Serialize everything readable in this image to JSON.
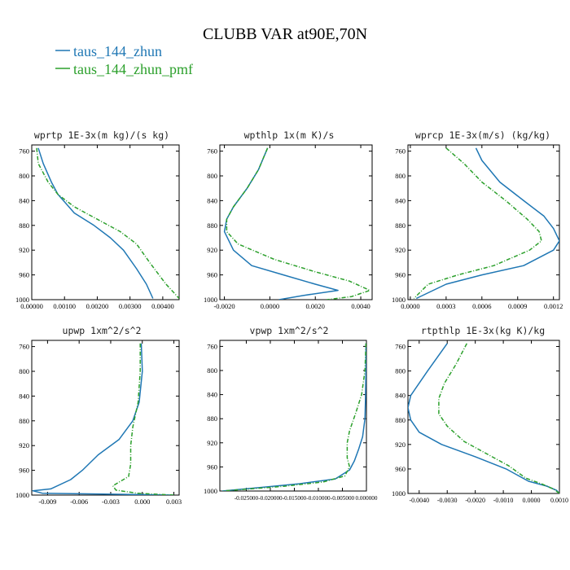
{
  "figure": {
    "title": "CLUBB VAR at90E,70N",
    "legend": [
      {
        "label": "taus_144_zhun",
        "color": "#1f77b4",
        "dash": "solid"
      },
      {
        "label": "taus_144_zhun_pmf",
        "color": "#2ca02c",
        "dash": "dashed"
      }
    ]
  },
  "chart_data": [
    {
      "type": "line",
      "title": "wprtp  1E-3x(m kg)/(s kg)",
      "xlim": [
        0.0,
        0.0045
      ],
      "ylim": [
        1000,
        750
      ],
      "yticks": [
        760,
        800,
        840,
        880,
        920,
        960,
        1000
      ],
      "xtick_labels": [
        "0.00000",
        "0.00100",
        "0.00200",
        "0.00300",
        "0.00400"
      ],
      "xtick_values": [
        0.0,
        0.001,
        0.002,
        0.003,
        0.004
      ],
      "series": [
        {
          "name": "taus_144_zhun",
          "color": "#1f77b4",
          "dash": "solid",
          "x": [
            0.0002,
            0.00035,
            0.0006,
            0.0008,
            0.0013,
            0.0019,
            0.0024,
            0.0028,
            0.0032,
            0.0035,
            0.0037
          ],
          "y": [
            755,
            780,
            810,
            830,
            860,
            880,
            900,
            920,
            950,
            975,
            998
          ]
        },
        {
          "name": "taus_144_zhun_pmf",
          "color": "#2ca02c",
          "dash": "dashed",
          "x": [
            0.00015,
            0.0002,
            0.0005,
            0.0008,
            0.0013,
            0.002,
            0.0027,
            0.0032,
            0.0036,
            0.0041,
            0.0045
          ],
          "y": [
            755,
            780,
            810,
            830,
            850,
            870,
            890,
            910,
            940,
            975,
            998
          ]
        }
      ]
    },
    {
      "type": "line",
      "title": "wpthlp  1x(m K)/s",
      "xlim": [
        -0.0022,
        0.0045
      ],
      "ylim": [
        1000,
        750
      ],
      "yticks": [
        760,
        800,
        840,
        880,
        920,
        960,
        1000
      ],
      "xtick_labels": [
        "-0.0020",
        "0.0000",
        "0.0020",
        "0.0040"
      ],
      "xtick_values": [
        -0.002,
        0.0,
        0.002,
        0.004
      ],
      "series": [
        {
          "name": "taus_144_zhun",
          "color": "#1f77b4",
          "dash": "solid",
          "x": [
            -0.0001,
            -0.0005,
            -0.001,
            -0.0016,
            -0.0019,
            -0.002,
            -0.0016,
            -0.0008,
            0.0006,
            0.002,
            0.003,
            0.0015,
            0.0004
          ],
          "y": [
            755,
            790,
            820,
            850,
            870,
            890,
            920,
            945,
            960,
            975,
            985,
            993,
            1000
          ]
        },
        {
          "name": "taus_144_zhun_pmf",
          "color": "#2ca02c",
          "dash": "dashed",
          "x": [
            -0.0001,
            -0.0005,
            -0.001,
            -0.0016,
            -0.0019,
            -0.0019,
            -0.0014,
            0.0002,
            0.002,
            0.0035,
            0.0044,
            0.0036,
            0.0025
          ],
          "y": [
            755,
            790,
            820,
            850,
            870,
            890,
            910,
            935,
            955,
            970,
            985,
            995,
            1000
          ]
        }
      ]
    },
    {
      "type": "line",
      "title": "wprcp  1E-3x(m/s) (kg/kg)",
      "xlim": [
        -2e-05,
        0.00125
      ],
      "ylim": [
        1000,
        750
      ],
      "yticks": [
        760,
        800,
        840,
        880,
        920,
        960,
        1000
      ],
      "xtick_labels": [
        "0.0000",
        "0.0003",
        "0.0006",
        "0.0009",
        "0.0012"
      ],
      "xtick_values": [
        0.0,
        0.0003,
        0.0006,
        0.0009,
        0.0012
      ],
      "series": [
        {
          "name": "taus_144_zhun",
          "color": "#1f77b4",
          "dash": "solid",
          "x": [
            0.00055,
            0.0006,
            0.00075,
            0.00095,
            0.00112,
            0.0012,
            0.00125,
            0.0012,
            0.00095,
            0.0006,
            0.0003,
            5e-05
          ],
          "y": [
            755,
            775,
            810,
            840,
            865,
            885,
            905,
            920,
            945,
            960,
            975,
            998
          ]
        },
        {
          "name": "taus_144_zhun_pmf",
          "color": "#2ca02c",
          "dash": "dashed",
          "x": [
            0.0003,
            0.00045,
            0.0006,
            0.0008,
            0.00098,
            0.00108,
            0.0011,
            0.001,
            0.0007,
            0.0004,
            0.00015,
            3e-05
          ],
          "y": [
            755,
            780,
            810,
            840,
            870,
            890,
            905,
            920,
            945,
            960,
            975,
            998
          ]
        }
      ]
    },
    {
      "type": "line",
      "title": "upwp  1xm^2/s^2",
      "xlim": [
        -0.0105,
        0.0035
      ],
      "ylim": [
        1000,
        750
      ],
      "yticks": [
        760,
        800,
        840,
        880,
        920,
        960,
        1000
      ],
      "xtick_labels": [
        "-0.009",
        "-0.006",
        "-0.003",
        "0.000",
        "0.003"
      ],
      "xtick_values": [
        -0.009,
        -0.006,
        -0.003,
        0.0,
        0.003
      ],
      "series": [
        {
          "name": "taus_144_zhun",
          "color": "#1f77b4",
          "dash": "solid",
          "x": [
            -0.0001,
            0.0,
            -0.0003,
            -0.0009,
            -0.0022,
            -0.0042,
            -0.0057,
            -0.0068,
            -0.0087,
            -0.0104,
            -0.0095,
            0.003
          ],
          "y": [
            755,
            800,
            850,
            880,
            910,
            935,
            960,
            975,
            990,
            993,
            997,
            1000
          ]
        },
        {
          "name": "taus_144_zhun_pmf",
          "color": "#2ca02c",
          "dash": "dashed",
          "x": [
            -0.0002,
            -0.0002,
            -0.0004,
            -0.0009,
            -0.0011,
            -0.0011,
            -0.0013,
            -0.0028,
            -0.0025,
            -0.0005,
            0.003
          ],
          "y": [
            755,
            800,
            850,
            890,
            920,
            950,
            970,
            985,
            992,
            997,
            1000
          ]
        }
      ]
    },
    {
      "type": "line",
      "title": "vpwp  1xm^2/s^2",
      "xlim": [
        -0.0305,
        0.0
      ],
      "ylim": [
        1000,
        750
      ],
      "yticks": [
        760,
        800,
        840,
        880,
        920,
        960,
        1000
      ],
      "xtick_labels": [
        "-0.025000",
        "-0.020000",
        "-0.015000",
        "-0.010000",
        "-0.005000",
        "0.000000"
      ],
      "xtick_values": [
        -0.025,
        -0.02,
        -0.015,
        -0.01,
        -0.005,
        0.0
      ],
      "series": [
        {
          "name": "taus_144_zhun",
          "color": "#1f77b4",
          "dash": "solid",
          "x": [
            -0.0001,
            -0.0001,
            -0.0002,
            -0.0003,
            -0.0008,
            -0.0016,
            -0.0025,
            -0.0035,
            -0.0065,
            -0.014,
            -0.022,
            -0.03
          ],
          "y": [
            755,
            800,
            850,
            880,
            910,
            930,
            950,
            965,
            980,
            988,
            994,
            1000
          ]
        },
        {
          "name": "taus_144_zhun_pmf",
          "color": "#2ca02c",
          "dash": "dashed",
          "x": [
            -0.0001,
            -0.0003,
            -0.001,
            -0.0022,
            -0.0035,
            -0.004,
            -0.004,
            -0.0035,
            -0.0045,
            -0.009,
            -0.017,
            -0.025,
            -0.03
          ],
          "y": [
            755,
            800,
            840,
            870,
            900,
            920,
            945,
            960,
            975,
            985,
            992,
            997,
            1000
          ]
        }
      ]
    },
    {
      "type": "line",
      "title": "rtpthlp  1E-3x(kg K)/kg",
      "xlim": [
        -0.0044,
        0.001
      ],
      "ylim": [
        1000,
        750
      ],
      "yticks": [
        760,
        800,
        840,
        880,
        920,
        960,
        1000
      ],
      "xtick_labels": [
        "-0.0040",
        "-0.0030",
        "-0.0020",
        "-0.0010",
        "0.0000",
        "0.0010"
      ],
      "xtick_values": [
        -0.004,
        -0.003,
        -0.002,
        -0.001,
        0.0,
        0.001
      ],
      "series": [
        {
          "name": "taus_144_zhun",
          "color": "#1f77b4",
          "dash": "solid",
          "x": [
            -0.003,
            -0.0037,
            -0.0043,
            -0.0044,
            -0.0043,
            -0.004,
            -0.0032,
            -0.002,
            -0.0009,
            -0.0001,
            0.00055,
            0.0009,
            0.001
          ],
          "y": [
            755,
            800,
            840,
            860,
            880,
            900,
            920,
            940,
            960,
            980,
            988,
            995,
            1000
          ]
        },
        {
          "name": "taus_144_zhun_pmf",
          "color": "#2ca02c",
          "dash": "dashed",
          "x": [
            -0.0023,
            -0.0027,
            -0.0031,
            -0.0033,
            -0.0033,
            -0.003,
            -0.0024,
            -0.0016,
            -0.0008,
            -0.0002,
            0.0004,
            0.0008,
            0.001
          ],
          "y": [
            755,
            790,
            820,
            845,
            870,
            890,
            915,
            935,
            955,
            975,
            985,
            993,
            1000
          ]
        }
      ]
    }
  ]
}
